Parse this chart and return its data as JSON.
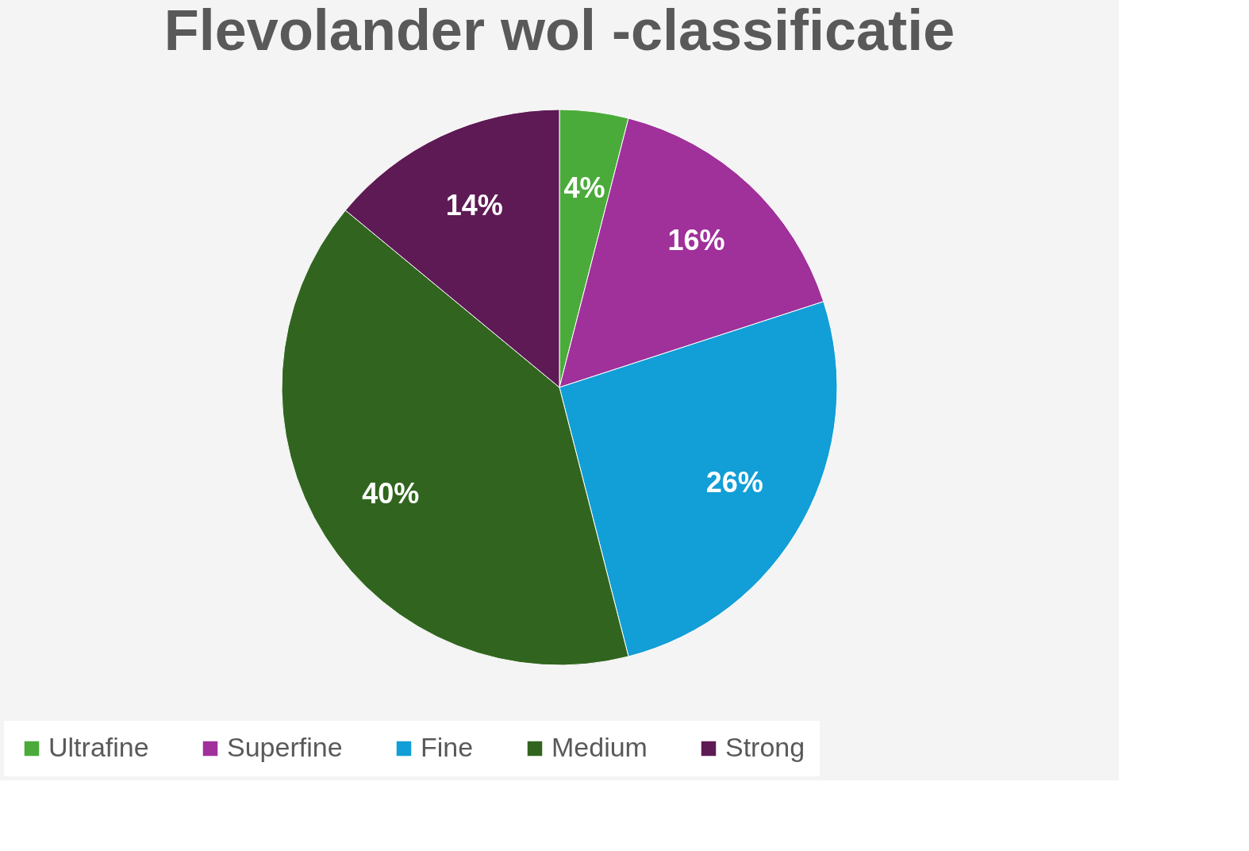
{
  "chart_data": {
    "type": "pie",
    "title": "Flevolander wol -classificatie",
    "categories": [
      "Ultrafine",
      "Superfine",
      "Fine",
      "Medium",
      "Strong"
    ],
    "values": [
      4,
      16,
      26,
      40,
      14
    ],
    "colors": [
      "#4aab3a",
      "#a0309a",
      "#129ed6",
      "#31651f",
      "#5e1a55"
    ],
    "value_labels": [
      "4%",
      "16%",
      "26%",
      "40%",
      "14%"
    ],
    "legend": "bottom"
  }
}
